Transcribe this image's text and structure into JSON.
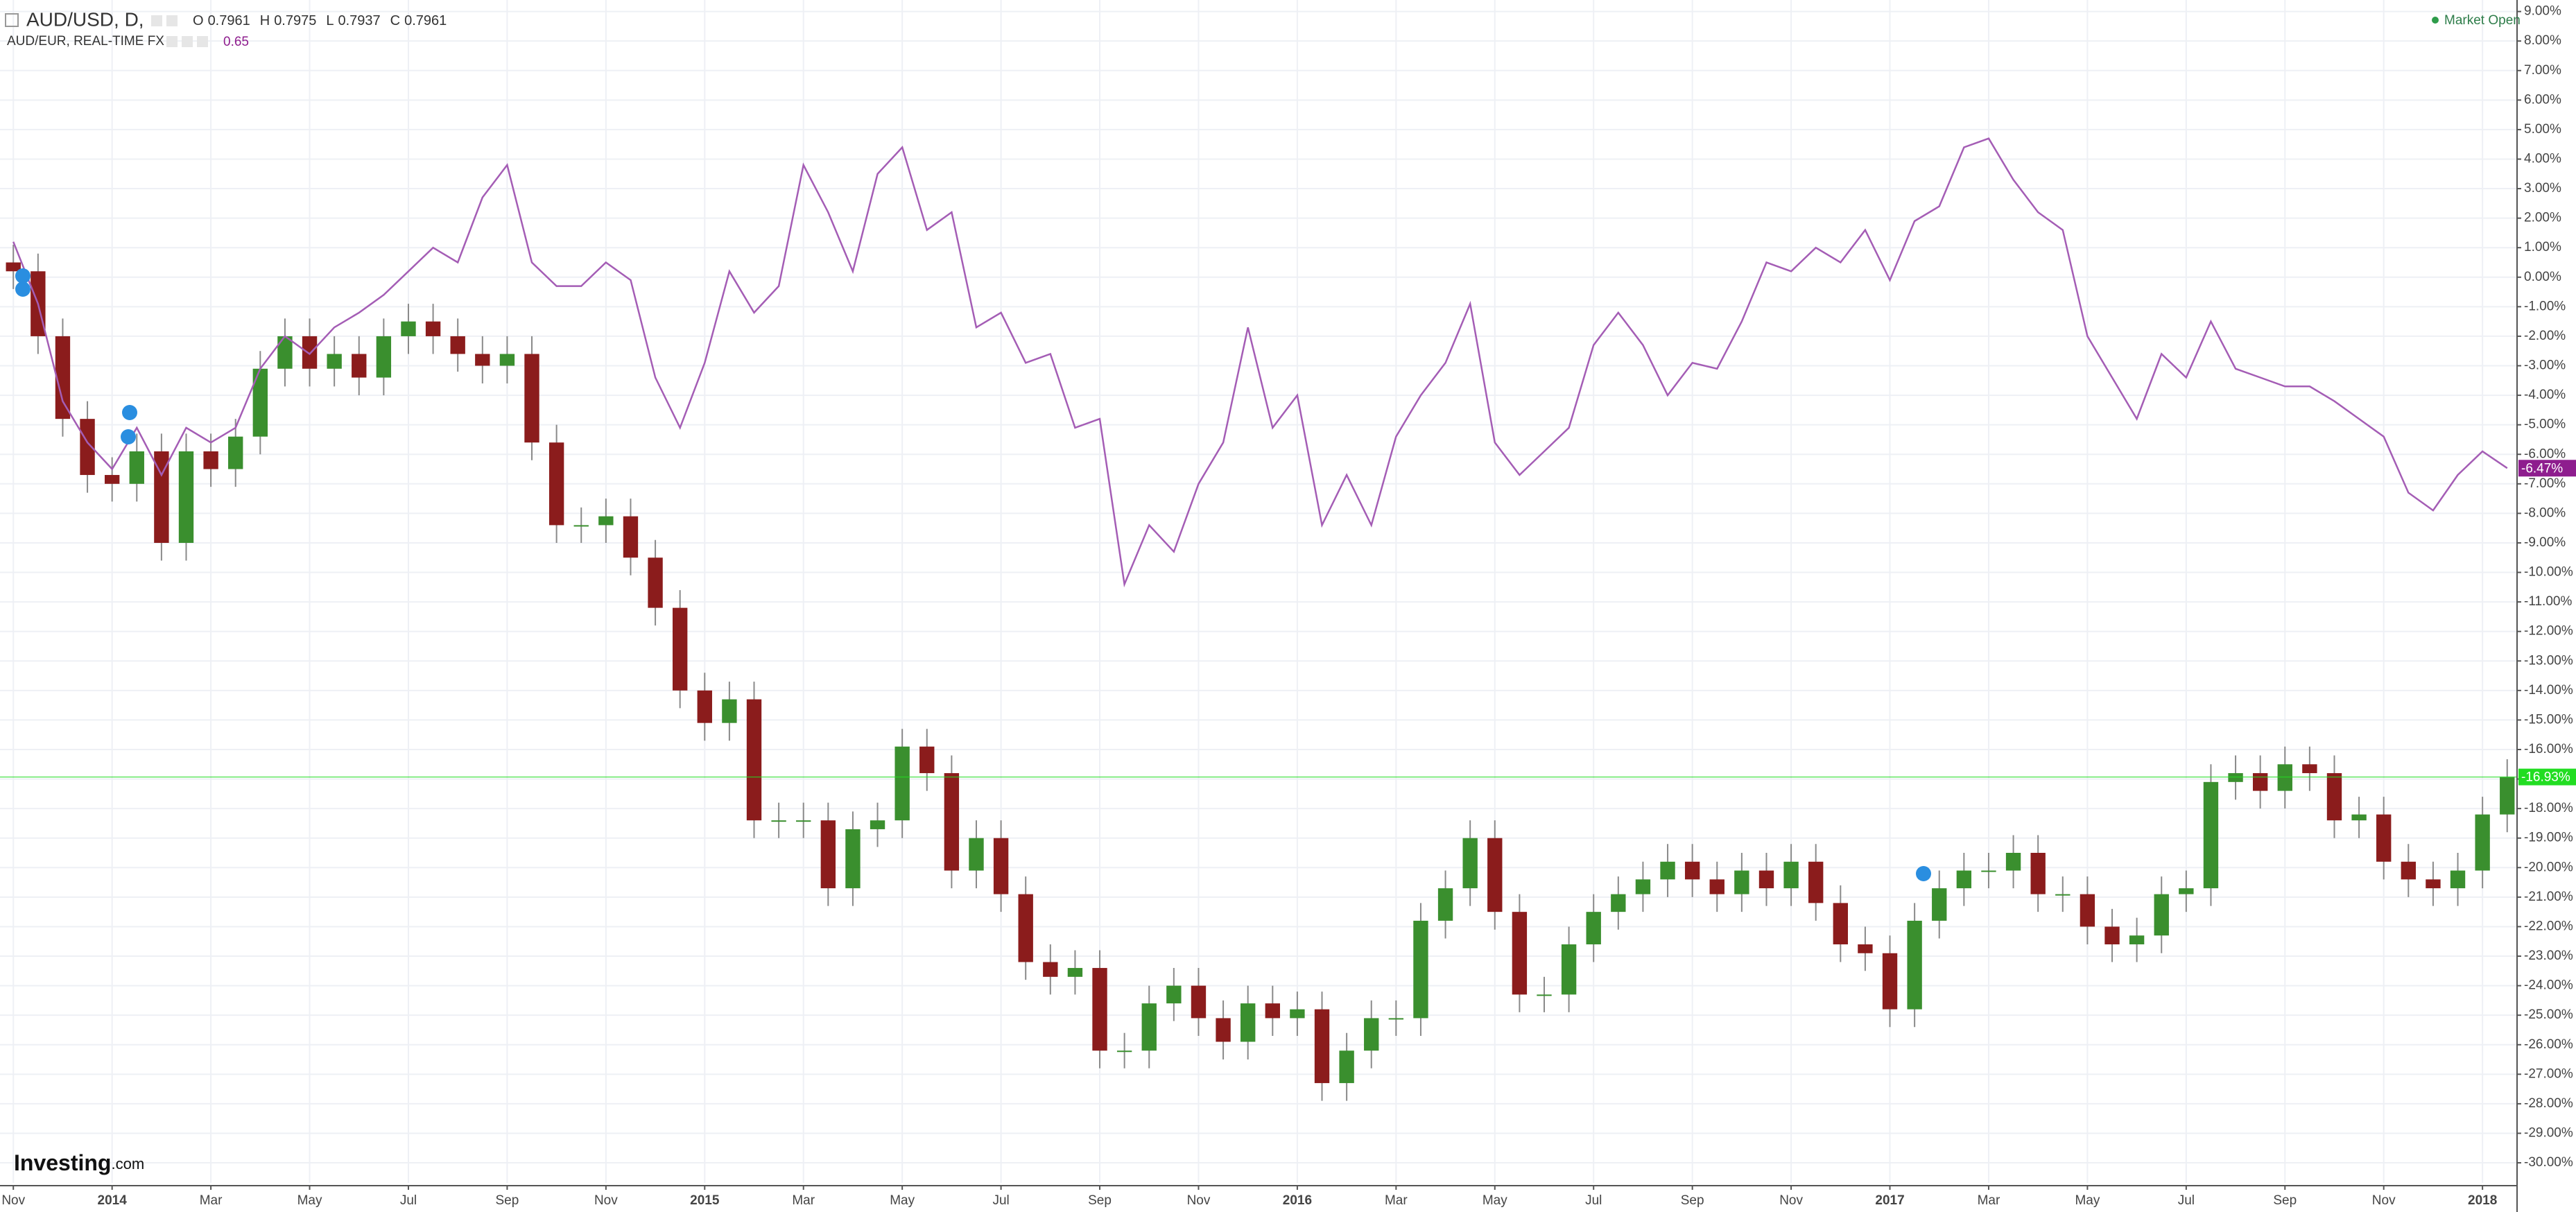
{
  "header": {
    "symbol": "AUD/USD, D,",
    "ohlc_labels": [
      "O",
      "H",
      "L",
      "C"
    ],
    "ohlc_values": [
      "0.7961",
      "0.7975",
      "0.7937",
      "0.7961"
    ],
    "compare_symbol": "AUD/EUR, REAL-TIME FX",
    "compare_value": "0.65",
    "status": "Market Open",
    "brand": "Investing",
    "brand_suffix": ".com"
  },
  "chart_data": {
    "type": "candlestick",
    "x": [
      0,
      0.5,
      1,
      1.5,
      2,
      2.5,
      3,
      3.5,
      4,
      4.5,
      5,
      5.5,
      6,
      6.5,
      7,
      7.5,
      8,
      8.5,
      9,
      9.5,
      10,
      10.5,
      11,
      11.5,
      12,
      12.5,
      13,
      13.5,
      14,
      14.5,
      15,
      15.5,
      16,
      16.5,
      17,
      17.5,
      18,
      18.5,
      19,
      19.5,
      20,
      20.5,
      21,
      21.5,
      22,
      22.5,
      23,
      23.5,
      24,
      24.5,
      25,
      25.5,
      26,
      26.5,
      27,
      27.5,
      28,
      28.5,
      29,
      29.5,
      30,
      30.5,
      31,
      31.5,
      32,
      32.5,
      33,
      33.5,
      34,
      34.5,
      35,
      35.5,
      36,
      36.5,
      37,
      37.5,
      38,
      38.5,
      39,
      39.5,
      40,
      40.5,
      41,
      41.5,
      42,
      42.5,
      43,
      43.5,
      44,
      44.5,
      45,
      45.5,
      46,
      46.5,
      47,
      47.5,
      48,
      48.5,
      49,
      49.5,
      50,
      50.5
    ],
    "xlim": [
      -0.27,
      50.7
    ],
    "xticks": [
      {
        "value": 0,
        "label": "Nov"
      },
      {
        "value": 2,
        "label": "2014"
      },
      {
        "value": 4,
        "label": "Mar"
      },
      {
        "value": 6,
        "label": "May"
      },
      {
        "value": 8,
        "label": "Jul"
      },
      {
        "value": 10,
        "label": "Sep"
      },
      {
        "value": 12,
        "label": "Nov"
      },
      {
        "value": 14,
        "label": "2015"
      },
      {
        "value": 16,
        "label": "Mar"
      },
      {
        "value": 18,
        "label": "May"
      },
      {
        "value": 20,
        "label": "Jul"
      },
      {
        "value": 22,
        "label": "Sep"
      },
      {
        "value": 24,
        "label": "Nov"
      },
      {
        "value": 26,
        "label": "2016"
      },
      {
        "value": 28,
        "label": "Mar"
      },
      {
        "value": 30,
        "label": "May"
      },
      {
        "value": 32,
        "label": "Jul"
      },
      {
        "value": 34,
        "label": "Sep"
      },
      {
        "value": 36,
        "label": "Nov"
      },
      {
        "value": 38,
        "label": "2017"
      },
      {
        "value": 40,
        "label": "Mar"
      },
      {
        "value": 42,
        "label": "May"
      },
      {
        "value": 44,
        "label": "Jul"
      },
      {
        "value": 46,
        "label": "Sep"
      },
      {
        "value": 48,
        "label": "Nov"
      },
      {
        "value": 50,
        "label": "2018"
      }
    ],
    "ylim": [
      -30.68,
      9.39
    ],
    "yticks": [
      {
        "value": 9,
        "label": "9.00%"
      },
      {
        "value": 8,
        "label": "8.00%"
      },
      {
        "value": 7,
        "label": "7.00%"
      },
      {
        "value": 6,
        "label": "6.00%"
      },
      {
        "value": 5,
        "label": "5.00%"
      },
      {
        "value": 4,
        "label": "4.00%"
      },
      {
        "value": 3,
        "label": "3.00%"
      },
      {
        "value": 2,
        "label": "2.00%"
      },
      {
        "value": 1,
        "label": "1.00%"
      },
      {
        "value": 0,
        "label": "0.00%"
      },
      {
        "value": -1,
        "label": "-1.00%"
      },
      {
        "value": -2,
        "label": "-2.00%"
      },
      {
        "value": -3,
        "label": "-3.00%"
      },
      {
        "value": -4,
        "label": "-4.00%"
      },
      {
        "value": -5,
        "label": "-5.00%"
      },
      {
        "value": -6,
        "label": "-6.00%"
      },
      {
        "value": -7,
        "label": "-7.00%"
      },
      {
        "value": -8,
        "label": "-8.00%"
      },
      {
        "value": -9,
        "label": "-9.00%"
      },
      {
        "value": -10,
        "label": "-10.00%"
      },
      {
        "value": -11,
        "label": "-11.00%"
      },
      {
        "value": -12,
        "label": "-12.00%"
      },
      {
        "value": -13,
        "label": "-13.00%"
      },
      {
        "value": -14,
        "label": "-14.00%"
      },
      {
        "value": -15,
        "label": "-15.00%"
      },
      {
        "value": -16,
        "label": "-16.00%"
      },
      {
        "value": -17,
        "label": "-17.00%"
      },
      {
        "value": -18,
        "label": "-18.00%"
      },
      {
        "value": -19,
        "label": "-19.00%"
      },
      {
        "value": -20,
        "label": "-20.00%"
      },
      {
        "value": -21,
        "label": "-21.00%"
      },
      {
        "value": -22,
        "label": "-22.00%"
      },
      {
        "value": -23,
        "label": "-23.00%"
      },
      {
        "value": -24,
        "label": "-24.00%"
      },
      {
        "value": -25,
        "label": "-25.00%"
      },
      {
        "value": -26,
        "label": "-26.00%"
      },
      {
        "value": -27,
        "label": "-27.00%"
      },
      {
        "value": -28,
        "label": "-28.00%"
      },
      {
        "value": -29,
        "label": "-29.00%"
      },
      {
        "value": -30,
        "label": "-30.00%"
      }
    ],
    "grid": true,
    "candles": {
      "up_color": "#3a8f2e",
      "down_color": "#8b1c1c",
      "wick_color": "#8a8a8a",
      "label_color": "#22dd22",
      "last_label": "-16.93%",
      "open": [
        0.5,
        0.2,
        -2.0,
        -4.8,
        -6.7,
        -7.0,
        -5.9,
        -9.0,
        -5.9,
        -6.5,
        -5.4,
        -3.1,
        -2.0,
        -3.1,
        -2.6,
        -3.4,
        -2.0,
        -1.5,
        -2.0,
        -2.6,
        -3.0,
        -2.6,
        -5.6,
        -8.4,
        -8.4,
        -8.1,
        -9.5,
        -11.2,
        -14.0,
        -15.1,
        -14.3,
        -18.4,
        -18.4,
        -18.4,
        -20.7,
        -18.7,
        -18.4,
        -15.9,
        -16.8,
        -20.1,
        -19.0,
        -20.9,
        -23.2,
        -23.7,
        -23.4,
        -26.2,
        -26.2,
        -24.6,
        -24.0,
        -25.1,
        -25.9,
        -24.6,
        -25.1,
        -24.8,
        -27.3,
        -26.2,
        -25.1,
        -25.1,
        -21.8,
        -20.7,
        -19.0,
        -21.5,
        -24.3,
        -24.3,
        -22.6,
        -21.5,
        -20.9,
        -20.4,
        -19.8,
        -20.4,
        -20.9,
        -20.1,
        -20.7,
        -19.8,
        -21.2,
        -22.6,
        -22.9,
        -24.8,
        -21.8,
        -20.7,
        -20.1,
        -20.1,
        -19.5,
        -20.9,
        -20.9,
        -22.0,
        -22.6,
        -22.3,
        -20.9,
        -20.7,
        -17.1,
        -16.8,
        -17.4,
        -16.5,
        -16.8,
        -18.4,
        -18.2,
        -19.8,
        -20.4,
        -20.7,
        -20.1,
        -18.2
      ],
      "high": [
        1.1,
        0.8,
        -1.4,
        -4.2,
        -6.1,
        -5.3,
        -5.3,
        -5.3,
        -5.3,
        -4.8,
        -2.5,
        -1.4,
        -1.4,
        -2.0,
        -2.0,
        -1.4,
        -0.9,
        -0.9,
        -1.4,
        -2.0,
        -2.0,
        -2.0,
        -5.0,
        -7.8,
        -7.5,
        -7.5,
        -8.9,
        -10.6,
        -13.4,
        -13.7,
        -13.7,
        -17.8,
        -17.8,
        -17.8,
        -18.1,
        -17.8,
        -15.3,
        -15.3,
        -16.2,
        -18.4,
        -18.4,
        -20.3,
        -22.6,
        -22.8,
        -22.8,
        -25.6,
        -24.0,
        -23.4,
        -23.4,
        -24.5,
        -24.0,
        -24.0,
        -24.2,
        -24.2,
        -25.6,
        -24.5,
        -24.5,
        -21.2,
        -20.1,
        -18.4,
        -18.4,
        -20.9,
        -23.7,
        -22.0,
        -20.9,
        -20.3,
        -19.8,
        -19.2,
        -19.2,
        -19.8,
        -19.5,
        -19.5,
        -19.2,
        -19.2,
        -20.6,
        -22.0,
        -22.3,
        -21.2,
        -20.1,
        -19.5,
        -19.5,
        -18.9,
        -18.9,
        -20.3,
        -20.3,
        -21.4,
        -21.7,
        -20.3,
        -20.1,
        -16.5,
        -16.2,
        -16.2,
        -15.9,
        -15.9,
        -16.2,
        -17.6,
        -17.6,
        -19.2,
        -19.8,
        -19.5,
        -17.6,
        -16.33
      ],
      "low": [
        -0.4,
        -2.6,
        -5.4,
        -7.3,
        -7.6,
        -7.6,
        -9.6,
        -9.6,
        -7.1,
        -7.1,
        -6.0,
        -3.7,
        -3.7,
        -3.7,
        -4.0,
        -4.0,
        -2.6,
        -2.6,
        -3.2,
        -3.6,
        -3.6,
        -6.2,
        -9.0,
        -9.0,
        -9.0,
        -10.1,
        -11.8,
        -14.6,
        -15.7,
        -15.7,
        -19.0,
        -19.0,
        -19.0,
        -21.3,
        -21.3,
        -19.3,
        -19.0,
        -17.4,
        -20.7,
        -20.7,
        -21.5,
        -23.8,
        -24.3,
        -24.3,
        -26.8,
        -26.8,
        -26.8,
        -25.2,
        -25.7,
        -26.5,
        -26.5,
        -25.7,
        -25.7,
        -27.9,
        -27.9,
        -26.8,
        -25.7,
        -25.7,
        -22.4,
        -21.3,
        -22.1,
        -24.9,
        -24.9,
        -24.9,
        -23.2,
        -22.1,
        -21.5,
        -21.0,
        -21.0,
        -21.5,
        -21.5,
        -21.3,
        -21.3,
        -21.8,
        -23.2,
        -23.5,
        -25.4,
        -25.4,
        -22.4,
        -21.3,
        -20.7,
        -20.7,
        -21.5,
        -21.5,
        -22.6,
        -23.2,
        -23.2,
        -22.9,
        -21.5,
        -21.3,
        -17.7,
        -18.0,
        -18.0,
        -17.4,
        -19.0,
        -19.0,
        -20.4,
        -21.0,
        -21.3,
        -21.3,
        -20.7,
        -18.8
      ],
      "close": [
        0.2,
        -2.0,
        -4.8,
        -6.7,
        -7.0,
        -5.9,
        -9.0,
        -5.9,
        -6.5,
        -5.4,
        -3.1,
        -2.0,
        -3.1,
        -2.6,
        -3.4,
        -2.0,
        -1.5,
        -2.0,
        -2.6,
        -3.0,
        -2.6,
        -5.6,
        -8.4,
        -8.4,
        -8.1,
        -9.5,
        -11.2,
        -14.0,
        -15.1,
        -14.3,
        -18.4,
        -18.4,
        -18.4,
        -20.7,
        -18.7,
        -18.4,
        -15.9,
        -16.8,
        -20.1,
        -19.0,
        -20.9,
        -23.2,
        -23.7,
        -23.4,
        -26.2,
        -26.2,
        -24.6,
        -24.0,
        -25.1,
        -25.9,
        -24.6,
        -25.1,
        -24.8,
        -27.3,
        -26.2,
        -25.1,
        -25.1,
        -21.8,
        -20.7,
        -19.0,
        -21.5,
        -24.3,
        -24.3,
        -22.6,
        -21.5,
        -20.9,
        -20.4,
        -19.8,
        -20.4,
        -20.9,
        -20.1,
        -20.7,
        -19.8,
        -21.2,
        -22.6,
        -22.9,
        -24.8,
        -21.8,
        -20.7,
        -20.1,
        -20.1,
        -19.5,
        -20.9,
        -20.9,
        -22.0,
        -22.6,
        -22.3,
        -20.9,
        -20.7,
        -17.1,
        -16.8,
        -17.4,
        -16.5,
        -16.8,
        -18.4,
        -18.2,
        -19.8,
        -20.4,
        -20.7,
        -20.1,
        -18.2,
        -16.93
      ]
    },
    "series": [
      {
        "name": "AUD/EUR",
        "color": "#a45db5",
        "label_color": "#8e1d8e",
        "last_label": "-6.47%",
        "values": [
          1.2,
          -0.9,
          -4.2,
          -5.6,
          -6.5,
          -5.1,
          -6.7,
          -5.1,
          -5.6,
          -5.1,
          -3.1,
          -2.0,
          -2.6,
          -1.7,
          -1.2,
          -0.6,
          0.2,
          1.0,
          0.5,
          2.7,
          3.8,
          0.5,
          -0.3,
          -0.3,
          0.5,
          -0.1,
          -3.4,
          -5.1,
          -2.9,
          0.2,
          -1.2,
          -0.3,
          3.8,
          2.2,
          0.2,
          3.5,
          4.4,
          1.6,
          2.2,
          -1.7,
          -1.2,
          -2.9,
          -2.6,
          -5.1,
          -4.8,
          -10.4,
          -8.4,
          -9.3,
          -7.0,
          -5.6,
          -1.7,
          -5.1,
          -4.0,
          -8.4,
          -6.7,
          -8.4,
          -5.4,
          -4.0,
          -2.9,
          -0.9,
          -5.6,
          -6.7,
          -5.9,
          -5.1,
          -2.3,
          -1.2,
          -2.3,
          -4.0,
          -2.9,
          -3.1,
          -1.5,
          0.5,
          0.2,
          1.0,
          0.5,
          1.6,
          -0.1,
          1.9,
          2.4,
          4.4,
          4.7,
          3.3,
          2.2,
          1.6,
          -2.0,
          -3.4,
          -4.8,
          -2.6,
          -3.4,
          -1.5,
          -3.1,
          -3.4,
          -3.7,
          -3.7,
          -4.2,
          -4.8,
          -5.4,
          -7.3,
          -7.9,
          -6.7,
          -5.9,
          -6.47
        ]
      }
    ]
  }
}
